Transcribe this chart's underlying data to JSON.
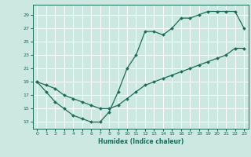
{
  "xlabel": "Humidex (Indice chaleur)",
  "bg_color": "#cce8e0",
  "line_color": "#1a6b5a",
  "xlim": [
    -0.5,
    23.5
  ],
  "ylim": [
    12.0,
    30.5
  ],
  "xticks": [
    0,
    1,
    2,
    3,
    4,
    5,
    6,
    7,
    8,
    9,
    10,
    11,
    12,
    13,
    14,
    15,
    16,
    17,
    18,
    19,
    20,
    21,
    22,
    23
  ],
  "yticks": [
    13,
    15,
    17,
    19,
    21,
    23,
    25,
    27,
    29
  ],
  "curve1_x": [
    0,
    1,
    2,
    3,
    4,
    5,
    6,
    7,
    8,
    9,
    10,
    11,
    12,
    13,
    14,
    15,
    16,
    17,
    18,
    19,
    20,
    21,
    22,
    23
  ],
  "curve1_y": [
    19,
    17.5,
    16,
    15,
    14,
    13.5,
    13,
    13,
    14.5,
    17.5,
    21,
    23,
    26.5,
    26.5,
    26,
    27,
    28.5,
    28.5,
    29,
    29.5,
    29.5,
    29.5,
    29.5,
    27
  ],
  "curve2_x": [
    0,
    1,
    2,
    3,
    4,
    5,
    6,
    7,
    8,
    9,
    10,
    11,
    12,
    13,
    14,
    15,
    16,
    17,
    18,
    19,
    20,
    21,
    22,
    23
  ],
  "curve2_y": [
    19,
    18.5,
    18,
    17,
    16.5,
    16,
    15.5,
    15,
    15,
    15.5,
    16.5,
    17.5,
    18.5,
    19,
    19.5,
    20,
    20.5,
    21,
    21.5,
    22,
    22.5,
    23,
    24,
    24
  ]
}
